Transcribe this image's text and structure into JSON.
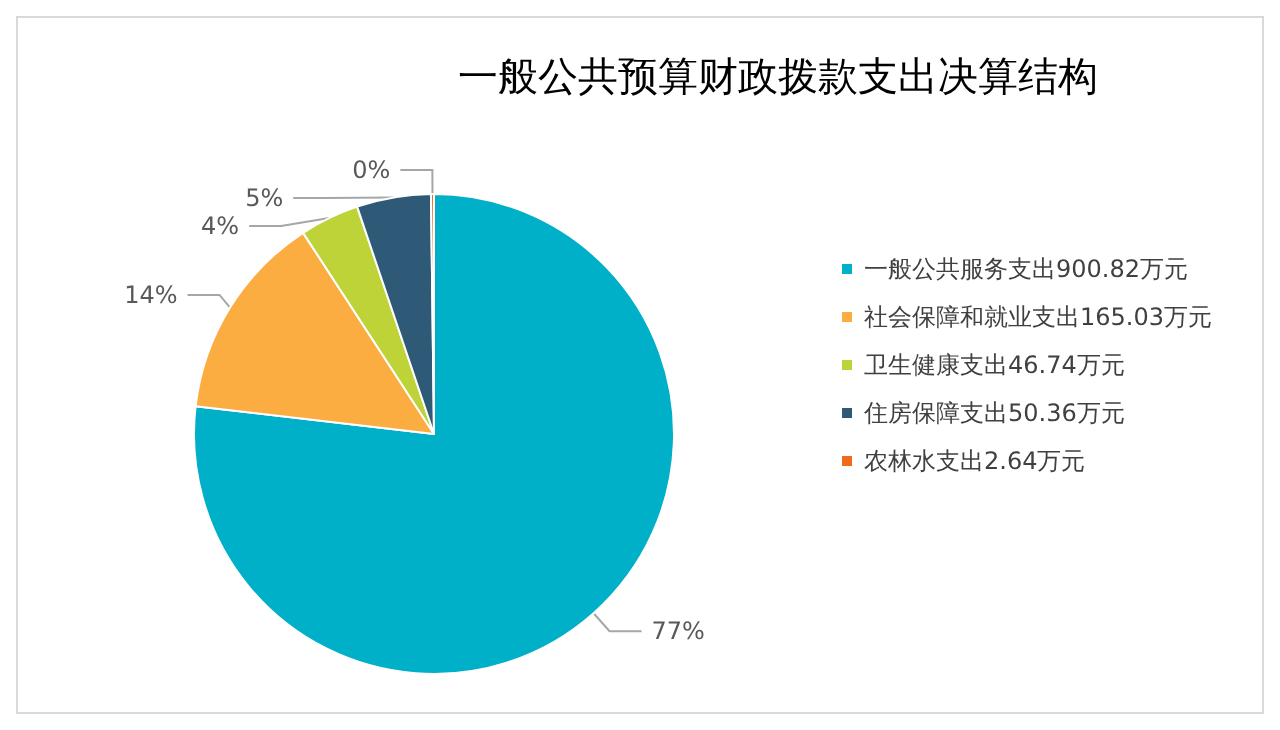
{
  "chart_data": {
    "type": "pie",
    "title": "一般公共预算财政拨款支出决算结构",
    "categories": [
      "一般公共服务支出900.82万元",
      "社会保障和就业支出165.03万元",
      "卫生健康支出46.74万元",
      "住房保障支出50.36万元",
      "农林水支出2.64万元"
    ],
    "values": [
      77,
      14,
      4,
      5,
      0.2
    ],
    "value_labels": [
      "77%",
      "14%",
      "4%",
      "5%",
      "0%"
    ],
    "colors": [
      "#00b0c9",
      "#fbad41",
      "#bdd337",
      "#2e5a78",
      "#f26a1c"
    ],
    "legend": "right"
  }
}
